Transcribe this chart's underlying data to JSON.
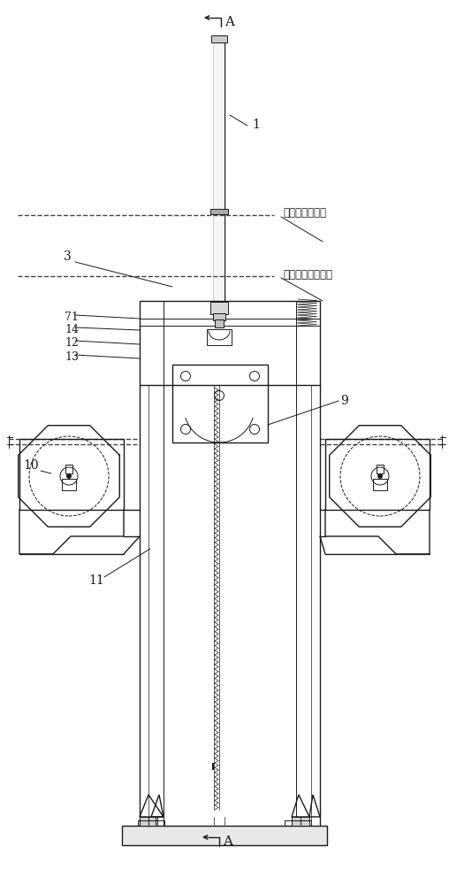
{
  "bg_color": "#ffffff",
  "line_color": "#1a1a1a",
  "dash_color": "#444444",
  "gray_line": "#888888",
  "labels": {
    "A_top": "A",
    "A_bottom": "A",
    "l1": "1",
    "l3": "3",
    "l9": "9",
    "l10": "10",
    "l11": "11",
    "l12": "12",
    "l13": "13",
    "l14": "14",
    "l71": "71",
    "text1": "输送机理论带面",
    "text2": "输送机中间架顶面"
  },
  "figsize": [
    5.08,
    10.0
  ],
  "dpi": 100
}
